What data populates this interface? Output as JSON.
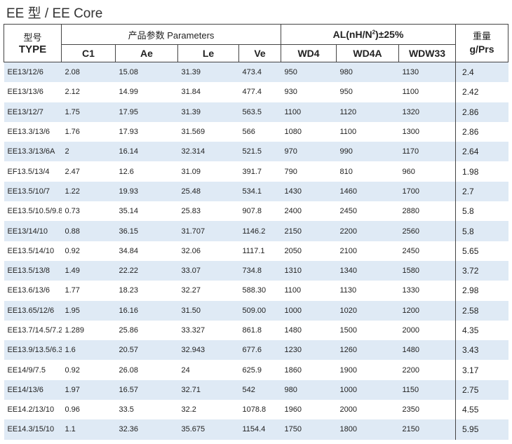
{
  "page_title": "EE 型  / EE Core",
  "header": {
    "type_cn": "型号",
    "type_en": "TYPE",
    "params_label": "产品参数  Parameters",
    "al_label": "AL(nH/N",
    "al_sup": "2",
    "al_suffix": ")±25%",
    "weight_cn": "重量",
    "weight_en": "g/Prs",
    "columns": [
      "C1",
      "Ae",
      "Le",
      "Ve",
      "WD4",
      "WD4A",
      "WDW33"
    ]
  },
  "rows": [
    {
      "type": "EE13/12/6",
      "c1": "2.08",
      "ae": "15.08",
      "le": "31.39",
      "ve": "473.4",
      "wd4": "950",
      "wd4a": "980",
      "wdw33": "1130",
      "weight": "2.4"
    },
    {
      "type": "EE13/13/6",
      "c1": "2.12",
      "ae": "14.99",
      "le": "31.84",
      "ve": "477.4",
      "wd4": "930",
      "wd4a": "950",
      "wdw33": "1100",
      "weight": "2.42"
    },
    {
      "type": "EE13/12/7",
      "c1": "1.75",
      "ae": "17.95",
      "le": "31.39",
      "ve": "563.5",
      "wd4": "1100",
      "wd4a": "1120",
      "wdw33": "1320",
      "weight": "2.86"
    },
    {
      "type": "EE13.3/13/6",
      "c1": "1.76",
      "ae": "17.93",
      "le": "31.569",
      "ve": "566",
      "wd4": "1080",
      "wd4a": "1100",
      "wdw33": "1300",
      "weight": "2.86"
    },
    {
      "type": "EE13.3/13/6A",
      "c1": "2",
      "ae": "16.14",
      "le": "32.314",
      "ve": "521.5",
      "wd4": "970",
      "wd4a": "990",
      "wdw33": "1170",
      "weight": "2.64"
    },
    {
      "type": "EF13.5/13/4",
      "c1": "2.47",
      "ae": "12.6",
      "le": "31.09",
      "ve": "391.7",
      "wd4": "790",
      "wd4a": "810",
      "wdw33": "960",
      "weight": "1.98"
    },
    {
      "type": "EE13.5/10/7",
      "c1": "1.22",
      "ae": "19.93",
      "le": "25.48",
      "ve": "534.1",
      "wd4": "1430",
      "wd4a": "1460",
      "wdw33": "1700",
      "weight": "2.7"
    },
    {
      "type": "EE13.5/10.5/9.8",
      "c1": "0.73",
      "ae": "35.14",
      "le": "25.83",
      "ve": "907.8",
      "wd4": "2400",
      "wd4a": "2450",
      "wdw33": "2880",
      "weight": "5.8"
    },
    {
      "type": "EE13/14/10",
      "c1": "0.88",
      "ae": "36.15",
      "le": "31.707",
      "ve": "1146.2",
      "wd4": "2150",
      "wd4a": "2200",
      "wdw33": "2560",
      "weight": "5.8"
    },
    {
      "type": "EE13.5/14/10",
      "c1": "0.92",
      "ae": "34.84",
      "le": "32.06",
      "ve": "1117.1",
      "wd4": "2050",
      "wd4a": "2100",
      "wdw33": "2450",
      "weight": "5.65"
    },
    {
      "type": "EE13.5/13/8",
      "c1": "1.49",
      "ae": "22.22",
      "le": "33.07",
      "ve": "734.8",
      "wd4": "1310",
      "wd4a": "1340",
      "wdw33": "1580",
      "weight": "3.72"
    },
    {
      "type": "EE13.6/13/6",
      "c1": "1.77",
      "ae": "18.23",
      "le": "32.27",
      "ve": "588.30",
      "wd4": "1100",
      "wd4a": "1130",
      "wdw33": "1330",
      "weight": "2.98"
    },
    {
      "type": "EE13.65/12/6",
      "c1": "1.95",
      "ae": "16.16",
      "le": "31.50",
      "ve": "509.00",
      "wd4": "1000",
      "wd4a": "1020",
      "wdw33": "1200",
      "weight": "2.58"
    },
    {
      "type": "EE13.7/14.5/7.2",
      "c1": "1.289",
      "ae": "25.86",
      "le": "33.327",
      "ve": "861.8",
      "wd4": "1480",
      "wd4a": "1500",
      "wdw33": "2000",
      "weight": "4.35"
    },
    {
      "type": "EE13.9/13.5/6.3",
      "c1": "1.6",
      "ae": "20.57",
      "le": "32.943",
      "ve": "677.6",
      "wd4": "1230",
      "wd4a": "1260",
      "wdw33": "1480",
      "weight": "3.43"
    },
    {
      "type": "EE14/9/7.5",
      "c1": "0.92",
      "ae": "26.08",
      "le": "24",
      "ve": "625.9",
      "wd4": "1860",
      "wd4a": "1900",
      "wdw33": "2200",
      "weight": "3.17"
    },
    {
      "type": "EE14/13/6",
      "c1": "1.97",
      "ae": "16.57",
      "le": "32.71",
      "ve": "542",
      "wd4": "980",
      "wd4a": "1000",
      "wdw33": "1150",
      "weight": "2.75"
    },
    {
      "type": "EE14.2/13/10",
      "c1": "0.96",
      "ae": "33.5",
      "le": "32.2",
      "ve": "1078.8",
      "wd4": "1960",
      "wd4a": "2000",
      "wdw33": "2350",
      "weight": "4.55"
    },
    {
      "type": "EE14.3/15/10",
      "c1": "1.1",
      "ae": "32.36",
      "le": "35.675",
      "ve": "1154.4",
      "wd4": "1750",
      "wd4a": "1800",
      "wdw33": "2150",
      "weight": "5.95"
    }
  ],
  "colors": {
    "row_shade": "#dfeaf5",
    "border": "#444444"
  }
}
